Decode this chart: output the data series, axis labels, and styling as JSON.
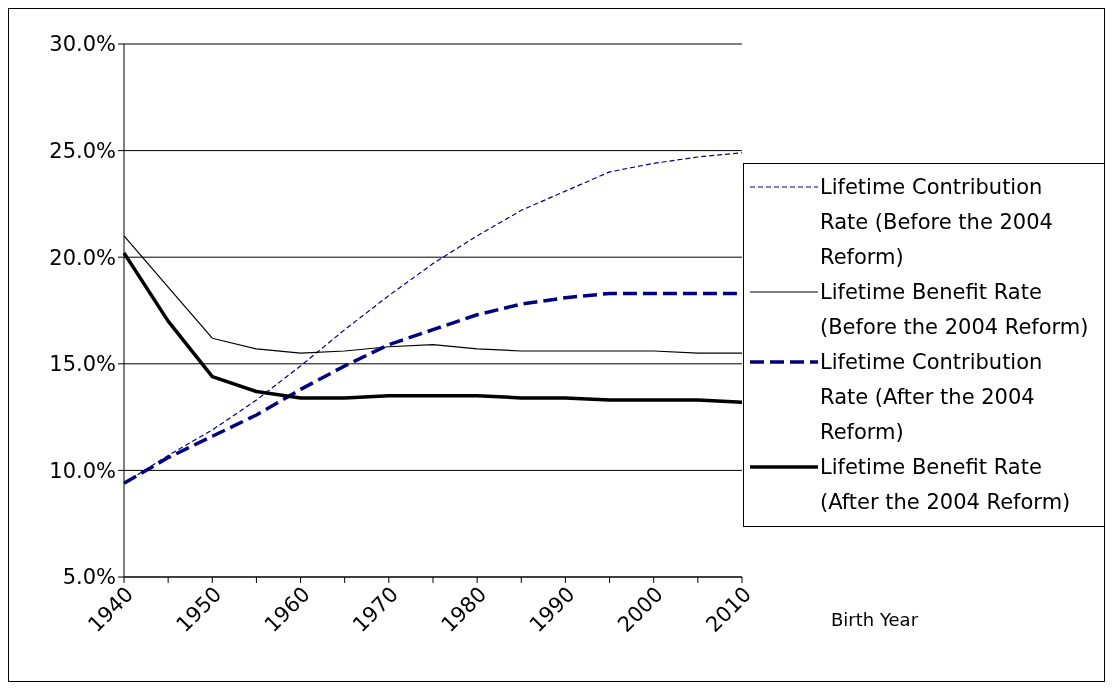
{
  "chart_data": {
    "type": "line",
    "xlabel": "Birth Year",
    "categories": [
      "1940",
      null,
      "1950",
      null,
      "1960",
      null,
      "1970",
      null,
      "1980",
      null,
      "1990",
      null,
      "2000",
      null,
      "2010"
    ],
    "series": [
      {
        "name": "Lifetime Contribution Rate (Before the 2004 Reform)",
        "color": "#000080",
        "line_style": "dashed",
        "values": [
          9.4,
          10.7,
          11.9,
          13.3,
          14.9,
          16.6,
          18.2,
          19.7,
          21.0,
          22.2,
          23.1,
          24.0,
          24.4,
          24.7,
          24.9
        ]
      },
      {
        "name": "Lifetime Benefit Rate (Before the 2004 Reform)",
        "color": "#000000",
        "line_style": "solid",
        "values": [
          21.0,
          18.6,
          16.2,
          15.7,
          15.5,
          15.6,
          15.8,
          15.9,
          15.7,
          15.6,
          15.6,
          15.6,
          15.6,
          15.5,
          15.5
        ]
      },
      {
        "name": "Lifetime Contribution Rate (After the 2004 Reform)",
        "color": "#000080",
        "line_style": "dashed",
        "values": [
          9.4,
          10.6,
          11.6,
          12.6,
          13.8,
          14.9,
          15.9,
          16.6,
          17.3,
          17.8,
          18.1,
          18.3,
          18.3,
          18.3,
          18.3
        ]
      },
      {
        "name": "Lifetime Benefit Rate (After the 2004 Reform)",
        "color": "#000000",
        "line_style": "solid",
        "values": [
          20.2,
          17.0,
          14.4,
          13.7,
          13.4,
          13.4,
          13.5,
          13.5,
          13.5,
          13.4,
          13.4,
          13.3,
          13.3,
          13.3,
          13.2
        ]
      }
    ],
    "ylim": [
      5,
      30
    ],
    "yticks": [
      {
        "value": 5,
        "label": "5.0%"
      },
      {
        "value": 10,
        "label": "10.0%"
      },
      {
        "value": 15,
        "label": "15.0%"
      },
      {
        "value": 20,
        "label": "20.0%"
      },
      {
        "value": 25,
        "label": "25.0%"
      },
      {
        "value": 30,
        "label": "30.0%"
      }
    ],
    "grid": "y",
    "legend": "right",
    "marker": "none"
  }
}
